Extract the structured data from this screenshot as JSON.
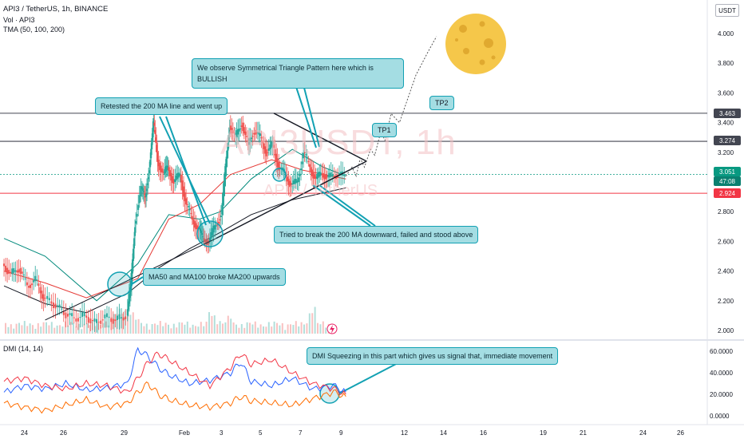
{
  "header": {
    "symbol_line": "API3 / TetherUS, 1h, BINANCE",
    "volume_line": "Vol · API3",
    "tma_line": "TMA (50, 100, 200)",
    "currency_badge": "USDT"
  },
  "watermark": {
    "symbol": "API3USDT, 1h",
    "name": "API3 / TetherUS"
  },
  "chart_data": [
    {
      "type": "line",
      "title": "API3 / TetherUS, 1h, BINANCE",
      "indicators": [
        "Vol · API3",
        "TMA (50, 100, 200)"
      ],
      "x_ticks": [
        "24",
        "26",
        "29",
        "Feb",
        "3",
        "5",
        "7",
        "9",
        "12",
        "14",
        "16",
        "19",
        "21",
        "24",
        "26"
      ],
      "y_ticks": [
        "4.000",
        "3.800",
        "3.600",
        "3.400",
        "3.200",
        "2.800",
        "2.600",
        "2.400",
        "2.200",
        "2.000"
      ],
      "ylim": [
        1.98,
        4.1
      ],
      "price_labels": [
        {
          "value": "3.463",
          "style": "dark"
        },
        {
          "value": "3.274",
          "style": "dark"
        },
        {
          "value": "3.051",
          "style": "green"
        },
        {
          "value": "47:08",
          "style": "green2"
        },
        {
          "value": "2.924",
          "style": "red"
        }
      ],
      "horizontal_levels": [
        {
          "value": 3.463,
          "color": "#434651"
        },
        {
          "value": 3.274,
          "color": "#434651"
        },
        {
          "value": 3.051,
          "color": "#089981"
        },
        {
          "value": 2.924,
          "color": "#f23645"
        }
      ],
      "price_path_days": [
        [
          22.0,
          2.45
        ],
        [
          22.4,
          2.38
        ],
        [
          22.8,
          2.42
        ],
        [
          23.2,
          2.3
        ],
        [
          23.6,
          2.34
        ],
        [
          24.0,
          2.22
        ],
        [
          24.5,
          2.18
        ],
        [
          25.0,
          2.12
        ],
        [
          25.5,
          2.08
        ],
        [
          26.0,
          2.1
        ],
        [
          26.5,
          2.05
        ],
        [
          27.0,
          2.09
        ],
        [
          27.5,
          2.07
        ],
        [
          28.0,
          2.1
        ],
        [
          28.2,
          2.3
        ],
        [
          28.4,
          2.72
        ],
        [
          28.7,
          2.95
        ],
        [
          28.9,
          2.9
        ],
        [
          29.1,
          3.1
        ],
        [
          29.3,
          3.4
        ],
        [
          29.5,
          3.15
        ],
        [
          29.8,
          3.05
        ],
        [
          30.0,
          3.1
        ],
        [
          30.3,
          3.0
        ],
        [
          30.6,
          3.05
        ],
        [
          30.9,
          2.85
        ],
        [
          31.2,
          2.75
        ],
        [
          31.5,
          2.68
        ],
        [
          31.7,
          2.62
        ],
        [
          32.0,
          2.6
        ],
        [
          32.3,
          2.7
        ],
        [
          32.6,
          2.78
        ],
        [
          32.8,
          3.1
        ],
        [
          33.0,
          3.38
        ],
        [
          33.3,
          3.3
        ],
        [
          33.6,
          3.4
        ],
        [
          33.9,
          3.25
        ],
        [
          34.2,
          3.35
        ],
        [
          34.5,
          3.3
        ],
        [
          34.8,
          3.2
        ],
        [
          35.1,
          3.25
        ],
        [
          35.4,
          3.1
        ],
        [
          35.7,
          3.05
        ],
        [
          36.0,
          2.98
        ],
        [
          36.3,
          3.0
        ],
        [
          36.6,
          3.2
        ],
        [
          36.9,
          3.1
        ],
        [
          37.2,
          3.02
        ],
        [
          37.5,
          3.06
        ],
        [
          37.8,
          3.03
        ],
        [
          38.2,
          3.05
        ],
        [
          38.6,
          3.04
        ]
      ],
      "moving_averages": [
        {
          "name": "MA50",
          "color": "#00897b",
          "points": [
            [
              22.0,
              2.62
            ],
            [
              24.0,
              2.5
            ],
            [
              26.5,
              2.2
            ],
            [
              28.5,
              2.45
            ],
            [
              30.0,
              2.78
            ],
            [
              31.5,
              2.75
            ],
            [
              32.5,
              2.8
            ],
            [
              34.0,
              3.02
            ],
            [
              36.0,
              3.22
            ],
            [
              37.5,
              3.1
            ],
            [
              38.6,
              3.04
            ]
          ]
        },
        {
          "name": "MA100",
          "color": "#e53935",
          "points": [
            [
              22.0,
              2.4
            ],
            [
              24.0,
              2.32
            ],
            [
              26.0,
              2.22
            ],
            [
              28.5,
              2.35
            ],
            [
              30.0,
              2.75
            ],
            [
              31.5,
              2.85
            ],
            [
              33.0,
              3.05
            ],
            [
              35.0,
              3.15
            ],
            [
              36.5,
              3.08
            ],
            [
              38.6,
              3.02
            ]
          ]
        },
        {
          "name": "MA200",
          "color": "#131722",
          "points": [
            [
              22.0,
              2.3
            ],
            [
              24.0,
              2.18
            ],
            [
              26.0,
              2.12
            ],
            [
              28.0,
              2.25
            ],
            [
              29.5,
              2.42
            ],
            [
              31.0,
              2.55
            ],
            [
              32.5,
              2.66
            ],
            [
              34.0,
              2.78
            ],
            [
              36.0,
              2.88
            ],
            [
              38.6,
              2.96
            ]
          ]
        }
      ],
      "projection_path_days": [
        [
          38.6,
          3.04
        ],
        [
          38.9,
          3.1
        ],
        [
          39.1,
          3.04
        ],
        [
          39.3,
          3.16
        ],
        [
          39.5,
          3.1
        ],
        [
          39.8,
          3.22
        ],
        [
          40.0,
          3.18
        ],
        [
          40.3,
          3.34
        ],
        [
          40.5,
          3.28
        ],
        [
          40.8,
          3.46
        ],
        [
          41.2,
          3.4
        ],
        [
          42.0,
          3.72
        ],
        [
          42.6,
          3.88
        ],
        [
          43.0,
          3.98
        ]
      ],
      "triangle": [
        [
          35.1,
          3.463
        ],
        [
          39.6,
          3.14
        ],
        [
          37.2,
          2.91
        ]
      ]
    },
    {
      "type": "line",
      "title": "DMI (14, 14)",
      "y_ticks": [
        "60.0000",
        "40.0000",
        "20.0000",
        "0.0000"
      ],
      "ylim": [
        -3,
        66
      ],
      "series": [
        {
          "name": "+DI",
          "color": "#2962ff",
          "x_days": [
            22,
            23,
            24,
            25,
            26,
            27,
            28,
            28.5,
            29,
            29.5,
            30,
            31,
            32,
            33,
            33.5,
            34,
            35,
            36,
            37,
            38,
            38.6
          ],
          "values": [
            22,
            28,
            25,
            30,
            24,
            26,
            30,
            62,
            55,
            45,
            38,
            30,
            33,
            40,
            50,
            32,
            28,
            35,
            25,
            28,
            22
          ]
        },
        {
          "name": "-DI",
          "color": "#f23645",
          "x_days": [
            22,
            23,
            24,
            25,
            26,
            27,
            28,
            28.5,
            29,
            29.5,
            30,
            31,
            32,
            33,
            33.5,
            34,
            35,
            36,
            37,
            38,
            38.6
          ],
          "values": [
            32,
            35,
            28,
            25,
            30,
            28,
            22,
            35,
            50,
            58,
            52,
            40,
            28,
            45,
            58,
            48,
            52,
            40,
            30,
            25,
            20
          ]
        },
        {
          "name": "ADX",
          "color": "#ff6d00",
          "x_days": [
            22,
            23,
            24,
            25,
            26,
            27,
            28,
            28.5,
            29,
            29.5,
            30,
            31,
            32,
            33,
            33.5,
            34,
            35,
            36,
            37,
            38,
            38.6
          ],
          "values": [
            12,
            8,
            5,
            10,
            15,
            8,
            12,
            22,
            30,
            20,
            15,
            10,
            8,
            12,
            18,
            14,
            12,
            10,
            16,
            22,
            18
          ]
        }
      ]
    }
  ],
  "dmi_legend": "DMI (14, 14)",
  "annotations": {
    "triangle_note": "We observe Symmetrical Triangle Pattern here which is BULLISH",
    "retest_note": "Retested the 200 MA line and went up",
    "break_fail_note": "Tried to break the 200 MA downward, failed and stood above",
    "ma_cross_note": "MA50 and MA100 broke MA200 upwards",
    "dmi_note": "DMI Squeezing in this part which gives us signal that, immediate movement",
    "tp1": "TP1",
    "tp2": "TP2"
  },
  "colors": {
    "accent": "#12a1b3",
    "callout_fill": "#a4dde3",
    "up": "#26a69a",
    "down": "#ef5350",
    "moon": "#f5c74a"
  },
  "icons": [
    "moon-icon",
    "lightning-icon"
  ]
}
